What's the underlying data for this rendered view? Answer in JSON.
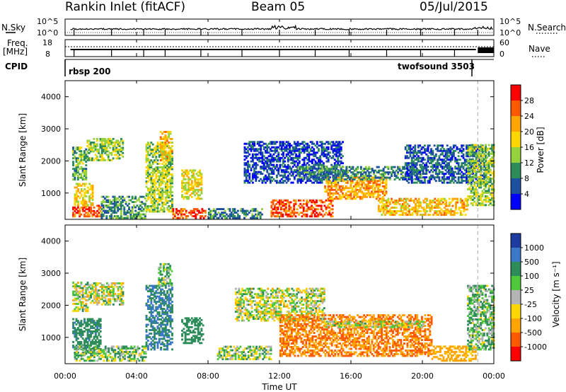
{
  "header": {
    "station": "Rankin Inlet (fitACF)",
    "beam": "Beam 05",
    "date": "05/Jul/2015"
  },
  "panels": {
    "nsky": {
      "left_label": "N.Sky",
      "right_label": "N.Search",
      "left_ticks": [
        "10^5",
        "10^0"
      ],
      "right_ticks": [
        "10^5",
        "10^0"
      ]
    },
    "freq": {
      "left_label_1": "Freq.",
      "left_label_2": "[MHz]",
      "right_label": "Nave",
      "left_ticks": [
        "18",
        "8"
      ],
      "right_ticks": [
        "60",
        "0"
      ]
    },
    "cpid": {
      "label": "CPID",
      "program_1": "rbsp 200",
      "program_2": "twofsound 3503"
    }
  },
  "x_axis": {
    "label": "Time UT",
    "ticks": [
      "00:00",
      "04:00",
      "08:00",
      "12:00",
      "16:00",
      "20:00",
      "00:00"
    ]
  },
  "power_colorbar": {
    "label": "Power [dB]",
    "ticks": [
      "28",
      "24",
      "20",
      "16",
      "12",
      "8",
      "4"
    ],
    "colors": [
      "#ff0000",
      "#ff5a00",
      "#ffa500",
      "#ffd700",
      "#96d23c",
      "#2d8c5a",
      "#1e50a0",
      "#0000ff"
    ]
  },
  "velocity_colorbar": {
    "label": "Velocity [m s⁻¹]",
    "ticks": [
      "1000",
      "500",
      "100",
      "25",
      "-25",
      "-100",
      "-500",
      "-1000"
    ],
    "colors": [
      "#1e3ca0",
      "#3c78c8",
      "#2d8c5a",
      "#50c83c",
      "#b4b4b4",
      "#ffd700",
      "#ffa500",
      "#ff5a00",
      "#ff0000"
    ]
  },
  "chart_data": [
    {
      "type": "heatmap",
      "xlabel": "",
      "ylabel": "Slant Range [km]",
      "y_ticks": [
        "1000",
        "2000",
        "3000",
        "4000"
      ],
      "xlim": [
        "00:00",
        "24:00"
      ],
      "ylim": [
        180,
        4500
      ],
      "colorbar": "power_colorbar",
      "regions": [
        {
          "t0": 0.4,
          "t1": 2.0,
          "r0": 250,
          "r1": 600,
          "v": 26
        },
        {
          "t0": 0.5,
          "t1": 1.5,
          "r0": 600,
          "r1": 1300,
          "v": 18
        },
        {
          "t0": 0.4,
          "t1": 1.2,
          "r0": 1400,
          "r1": 2400,
          "v": 12
        },
        {
          "t0": 1.2,
          "t1": 3.2,
          "r0": 2000,
          "r1": 2700,
          "v": 14
        },
        {
          "t0": 2.0,
          "t1": 4.5,
          "r0": 200,
          "r1": 900,
          "v": 10
        },
        {
          "t0": 4.5,
          "t1": 6.0,
          "r0": 400,
          "r1": 2600,
          "v": 15
        },
        {
          "t0": 5.3,
          "t1": 6.0,
          "r0": 2000,
          "r1": 2900,
          "v": 20
        },
        {
          "t0": 6.0,
          "t1": 7.8,
          "r0": 200,
          "r1": 500,
          "v": 27
        },
        {
          "t0": 6.5,
          "t1": 7.6,
          "r0": 800,
          "r1": 1700,
          "v": 17
        },
        {
          "t0": 8.0,
          "t1": 11.0,
          "r0": 200,
          "r1": 500,
          "v": 9
        },
        {
          "t0": 10.0,
          "t1": 15.5,
          "r0": 1300,
          "r1": 2600,
          "v": 5
        },
        {
          "t0": 11.5,
          "t1": 15.0,
          "r0": 250,
          "r1": 750,
          "v": 27
        },
        {
          "t0": 14.5,
          "t1": 18.0,
          "r0": 800,
          "r1": 1500,
          "v": 22
        },
        {
          "t0": 13.0,
          "t1": 20.0,
          "r0": 1400,
          "r1": 1800,
          "v": 9
        },
        {
          "t0": 17.5,
          "t1": 22.5,
          "r0": 300,
          "r1": 800,
          "v": 20
        },
        {
          "t0": 19.0,
          "t1": 23.5,
          "r0": 1300,
          "r1": 2500,
          "v": 7
        },
        {
          "t0": 22.5,
          "t1": 24.0,
          "r0": 600,
          "r1": 2500,
          "v": 14
        }
      ]
    },
    {
      "type": "heatmap",
      "xlabel": "Time UT",
      "ylabel": "Slant Range [km]",
      "y_ticks": [
        "1000",
        "2000",
        "3000",
        "4000"
      ],
      "xlim": [
        "00:00",
        "24:00"
      ],
      "ylim": [
        180,
        4500
      ],
      "colorbar": "velocity_colorbar",
      "regions": [
        {
          "t0": 0.4,
          "t1": 2.0,
          "r0": 500,
          "r1": 1600,
          "v": 400
        },
        {
          "t0": 0.4,
          "t1": 1.3,
          "r0": 1800,
          "r1": 2700,
          "v": 0
        },
        {
          "t0": 1.3,
          "t1": 3.2,
          "r0": 2000,
          "r1": 2700,
          "v": 0
        },
        {
          "t0": 0.5,
          "t1": 4.5,
          "r0": 250,
          "r1": 700,
          "v": 60
        },
        {
          "t0": 4.5,
          "t1": 6.0,
          "r0": 600,
          "r1": 2600,
          "v": 500
        },
        {
          "t0": 5.2,
          "t1": 6.0,
          "r0": 2600,
          "r1": 3300,
          "v": 60
        },
        {
          "t0": 6.5,
          "t1": 7.7,
          "r0": 800,
          "r1": 1600,
          "v": 300
        },
        {
          "t0": 8.5,
          "t1": 11.5,
          "r0": 300,
          "r1": 700,
          "v": 40
        },
        {
          "t0": 9.5,
          "t1": 14.5,
          "r0": 1500,
          "r1": 2500,
          "v": 0
        },
        {
          "t0": 12.0,
          "t1": 20.5,
          "r0": 400,
          "r1": 1700,
          "v": -500
        },
        {
          "t0": 14.5,
          "t1": 20.0,
          "r0": 1300,
          "r1": 1500,
          "v": 0
        },
        {
          "t0": 20.5,
          "t1": 23.0,
          "r0": 250,
          "r1": 700,
          "v": -200
        },
        {
          "t0": 22.5,
          "t1": 24.0,
          "r0": 600,
          "r1": 2600,
          "v": 80
        }
      ]
    }
  ]
}
